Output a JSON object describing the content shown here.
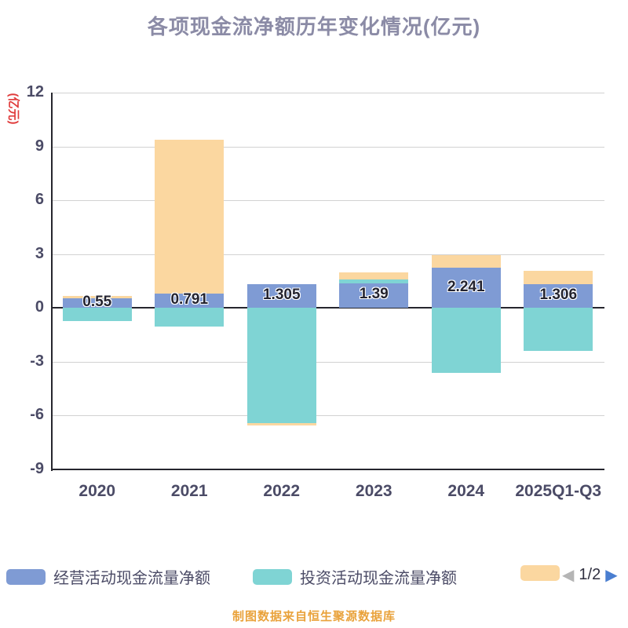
{
  "title": "各项现金流净额历年变化情况(亿元)",
  "y_axis_unit": "(亿元)",
  "source_note": "制图数据来自恒生聚源数据库",
  "colors": {
    "title": "#8b8ba6",
    "y_unit": "#e03c3c",
    "axis_text": "#4b4b66",
    "source_text": "#e9a23b",
    "pager_prev": "#b5b5b5",
    "pager_next": "#4a7ed0",
    "grid": "#d2d2d2",
    "axis_line": "#26262e"
  },
  "legend": {
    "items": [
      {
        "label": "经营活动现金流量净额",
        "color": "#7f9bd4"
      },
      {
        "label": "投资活动现金流量净额",
        "color": "#7fd4d4"
      },
      {
        "label": "",
        "color": "#fbd7a0"
      }
    ],
    "pagination": {
      "prev_icon": "◀",
      "current": "1/2",
      "next_icon": "▶"
    }
  },
  "chart_data": {
    "type": "bar",
    "stacked": true,
    "title": "各项现金流净额历年变化情况(亿元)",
    "ylabel": "(亿元)",
    "categories": [
      "2020",
      "2021",
      "2022",
      "2023",
      "2024",
      "2025Q1-Q3"
    ],
    "series": [
      {
        "name": "经营活动现金流量净额",
        "color": "#7f9bd4",
        "values": [
          0.55,
          0.791,
          1.305,
          1.39,
          2.241,
          1.306
        ]
      },
      {
        "name": "投资活动现金流量净额",
        "color": "#7fd4d4",
        "values": [
          -0.75,
          -1.05,
          -6.4,
          0.2,
          -3.6,
          -2.4
        ]
      },
      {
        "name": "",
        "color": "#fbd7a0",
        "values": [
          0.1,
          8.6,
          -0.15,
          0.4,
          0.7,
          0.75
        ]
      }
    ],
    "bar_labels": [
      "0.55",
      "0.791",
      "1.305",
      "1.39",
      "2.241",
      "1.306"
    ],
    "ylim": [
      -9,
      12
    ],
    "yticks": [
      12,
      9,
      6,
      3,
      0,
      -3,
      -6,
      -9
    ],
    "grid": true,
    "legend_position": "bottom"
  }
}
